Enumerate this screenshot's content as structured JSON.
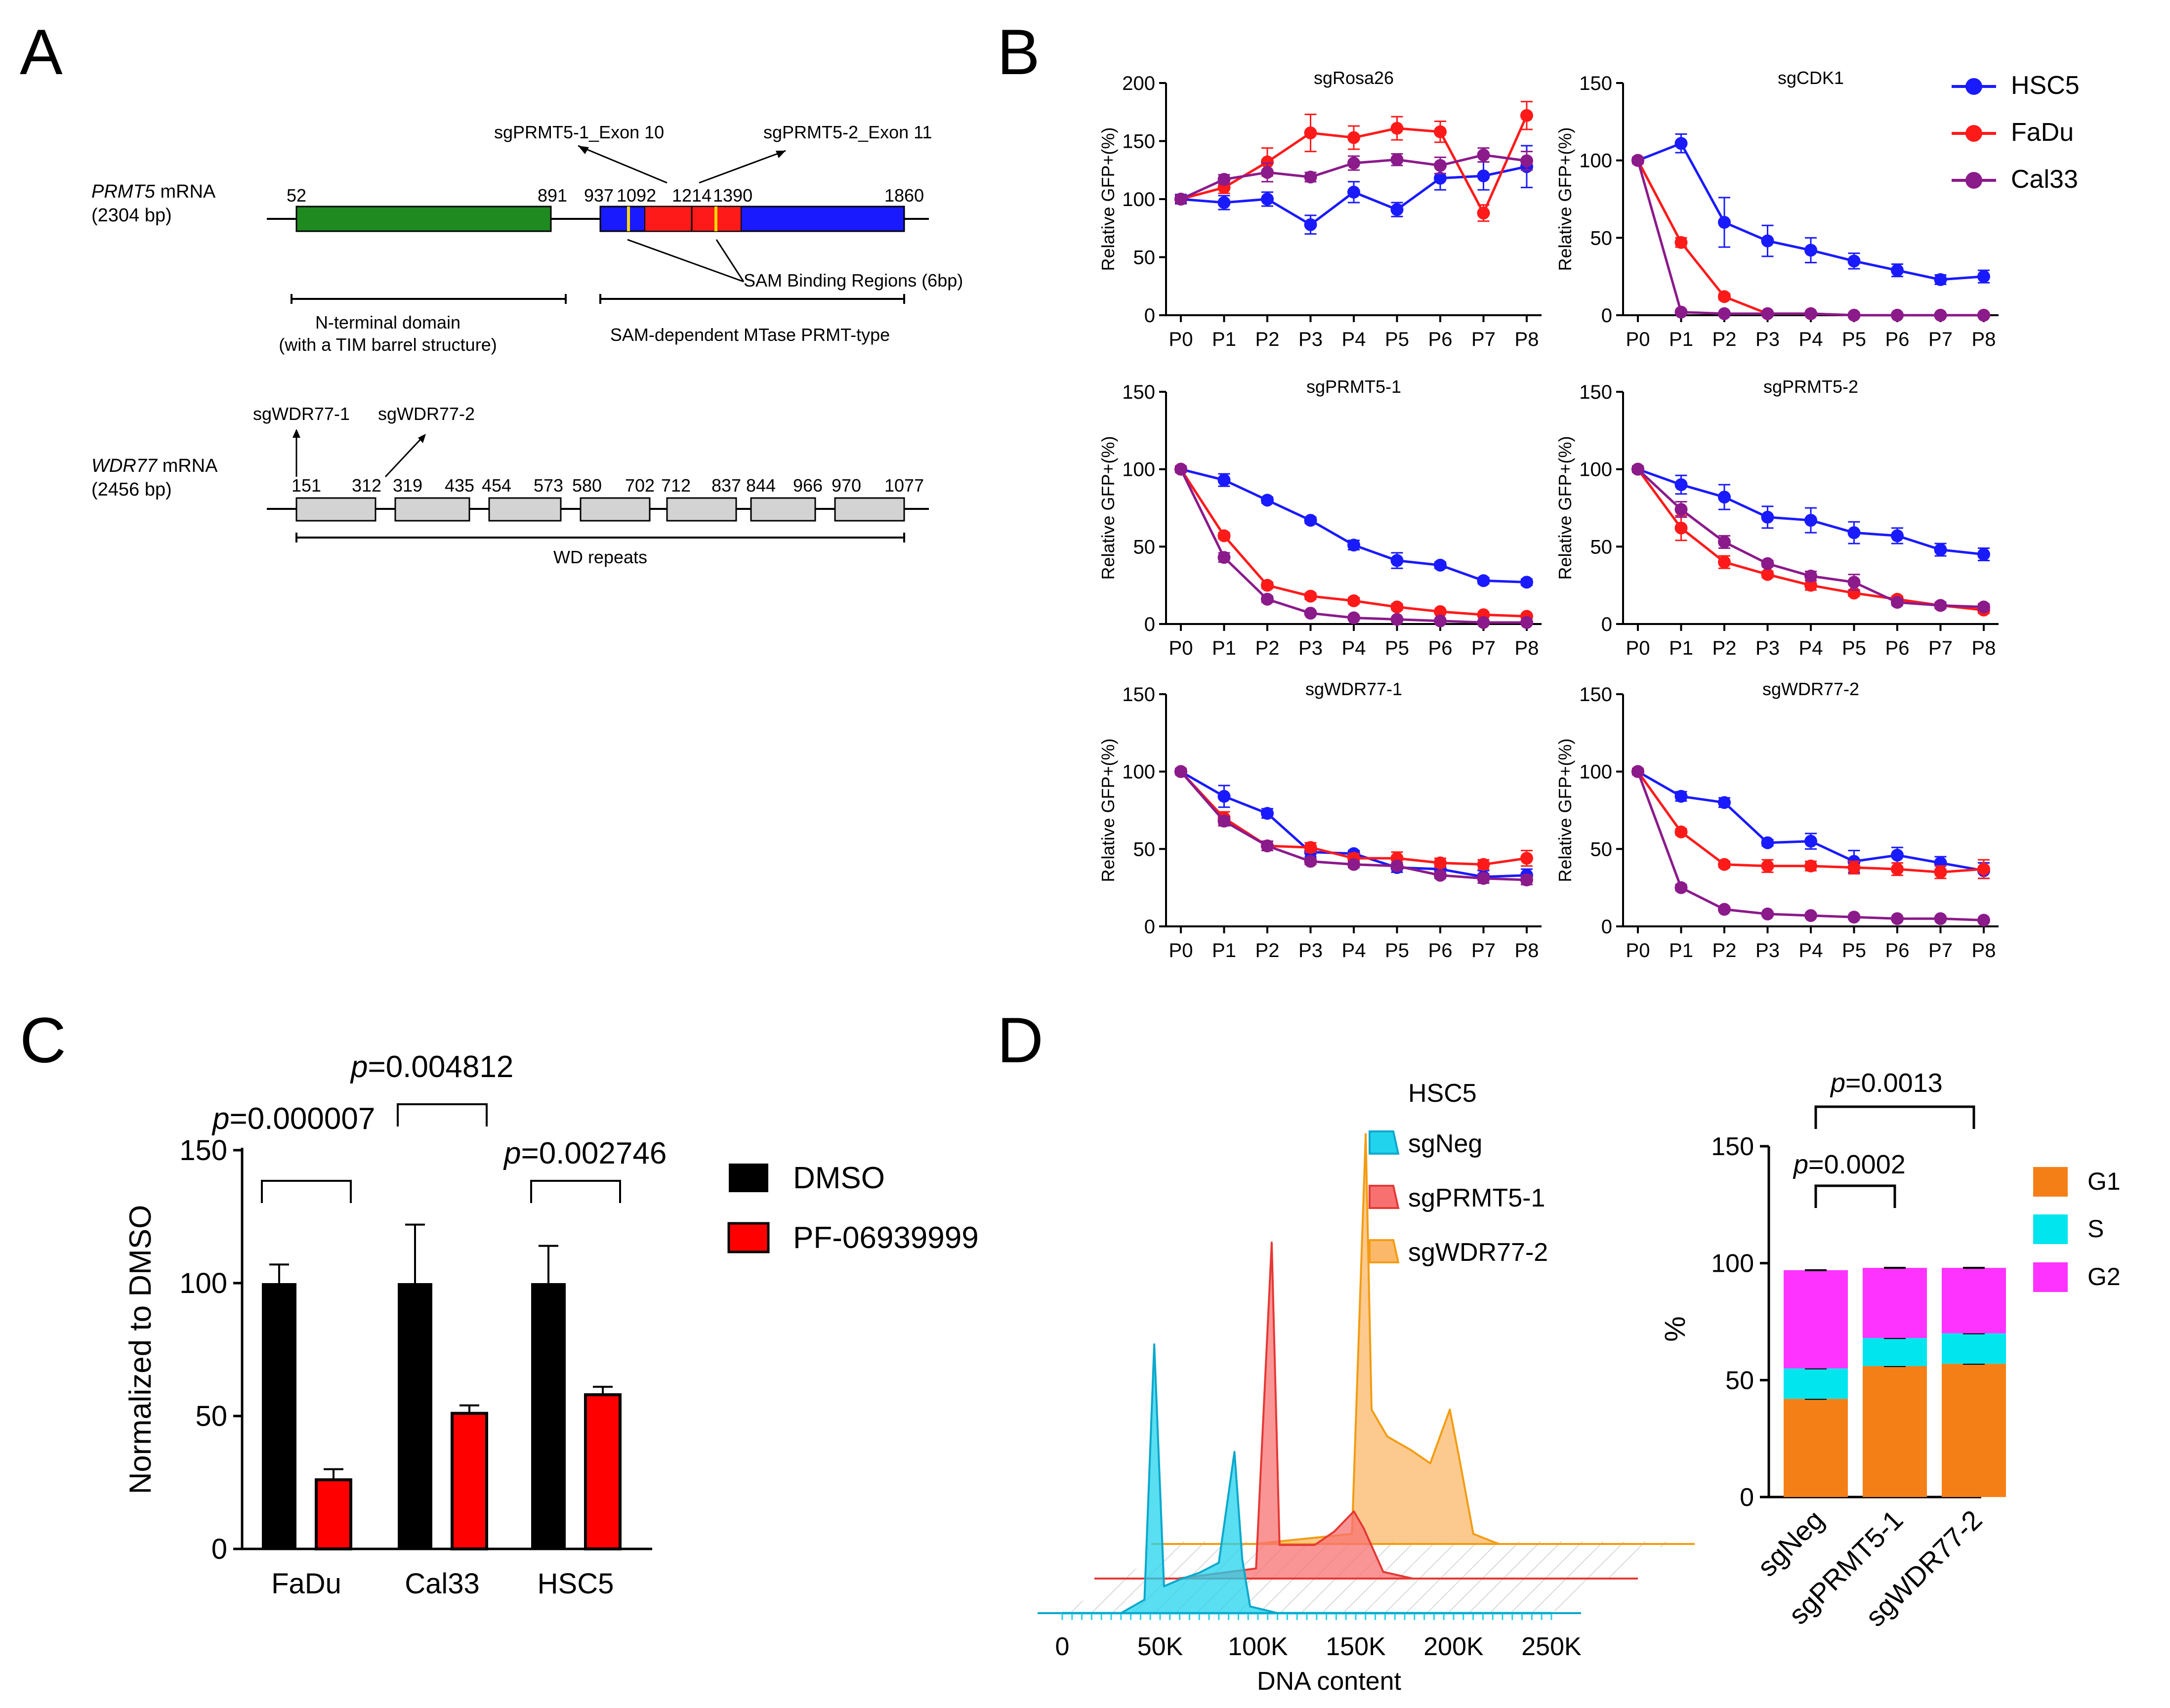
{
  "panel_labels": {
    "a": "A",
    "b": "B",
    "c": "C",
    "d": "D"
  },
  "colors": {
    "HSC5": "#1a1aff",
    "FaDu": "#ff1a1a",
    "Cal33": "#8b1a8b",
    "ntd": "#1f8a1f",
    "mtase": "#1a1aff",
    "sam": "#ff1a1a",
    "samline": "#ffd700",
    "wd": "#d3d3d3",
    "sgNeg": "#22d3ee",
    "sgPRMT5_1": "#f87171",
    "sgWDR77_2": "#fbb86a",
    "G1": "#f57f17",
    "S": "#00e5ee",
    "G2": "#ff33ff",
    "DMSO": "#000000",
    "PF": "#ff0000"
  },
  "panelA": {
    "prmt5": {
      "gene": "PRMT5",
      "suffix": " mRNA",
      "length": "(2304 bp)",
      "positions": [
        "52",
        "891",
        "937",
        "1092",
        "1214",
        "1390",
        "1860"
      ],
      "sg1": "sgPRMT5-1_Exon 10",
      "sg2": "sgPRMT5-2_Exon 11",
      "sam": "SAM Binding Regions (6bp)",
      "domain1": [
        "N-terminal domain",
        "(with a TIM barrel structure)"
      ],
      "domain2": "SAM-dependent MTase PRMT-type"
    },
    "wdr77": {
      "gene": "WDR77",
      "suffix": " mRNA",
      "length": "(2456 bp)",
      "sg1": "sgWDR77-1",
      "sg2": "sgWDR77-2",
      "positions": [
        "151",
        "312",
        "319",
        "435",
        "454",
        "573",
        "580",
        "702",
        "712",
        "837",
        "844",
        "966",
        "970",
        "1077"
      ],
      "domain": "WD repeats"
    }
  },
  "chart_data": [
    {
      "id": "B",
      "type": "line",
      "legend": [
        "HSC5",
        "FaDu",
        "Cal33"
      ],
      "x": [
        "P0",
        "P1",
        "P2",
        "P3",
        "P4",
        "P5",
        "P6",
        "P7",
        "P8"
      ],
      "ylabel": "Relative GFP+(%)",
      "subplots": [
        {
          "title": "sgRosa26",
          "ylim": [
            0,
            200
          ],
          "yticks": [
            0,
            50,
            100,
            150,
            200
          ],
          "series": [
            {
              "name": "HSC5",
              "values": [
                100,
                97,
                100,
                78,
                106,
                91,
                118,
                120,
                128
              ],
              "err": [
                4,
                6,
                6,
                8,
                9,
                6,
                10,
                12,
                18
              ]
            },
            {
              "name": "FaDu",
              "values": [
                100,
                110,
                132,
                157,
                153,
                161,
                158,
                88,
                172
              ],
              "err": [
                3,
                5,
                12,
                16,
                10,
                10,
                9,
                7,
                12
              ]
            },
            {
              "name": "Cal33",
              "values": [
                100,
                117,
                123,
                119,
                131,
                134,
                129,
                138,
                133
              ],
              "err": [
                3,
                4,
                8,
                4,
                6,
                5,
                7,
                6,
                8
              ]
            }
          ]
        },
        {
          "title": "sgCDK1",
          "ylim": [
            0,
            150
          ],
          "yticks": [
            0,
            50,
            100,
            150
          ],
          "series": [
            {
              "name": "HSC5",
              "values": [
                100,
                111,
                60,
                48,
                42,
                35,
                29,
                23,
                25
              ],
              "err": [
                2,
                6,
                16,
                10,
                8,
                5,
                4,
                3,
                4
              ]
            },
            {
              "name": "FaDu",
              "values": [
                100,
                47,
                12,
                1,
                1,
                0,
                0,
                0,
                0
              ],
              "err": [
                2,
                3,
                2,
                1,
                1,
                0,
                0,
                0,
                0
              ]
            },
            {
              "name": "Cal33",
              "values": [
                100,
                2,
                1,
                1,
                1,
                0,
                0,
                0,
                0
              ],
              "err": [
                2,
                1,
                0,
                0,
                0,
                0,
                0,
                0,
                0
              ]
            }
          ]
        },
        {
          "title": "sgPRMT5-1",
          "ylim": [
            0,
            150
          ],
          "yticks": [
            0,
            50,
            100,
            150
          ],
          "series": [
            {
              "name": "HSC5",
              "values": [
                100,
                93,
                80,
                67,
                51,
                41,
                38,
                28,
                27
              ],
              "err": [
                2,
                4,
                2,
                2,
                3,
                5,
                2,
                2,
                2
              ]
            },
            {
              "name": "FaDu",
              "values": [
                100,
                57,
                25,
                18,
                15,
                11,
                8,
                6,
                5
              ],
              "err": [
                2,
                2,
                2,
                2,
                2,
                2,
                1,
                1,
                1
              ]
            },
            {
              "name": "Cal33",
              "values": [
                100,
                43,
                16,
                7,
                4,
                3,
                2,
                1,
                1
              ],
              "err": [
                2,
                3,
                2,
                1,
                1,
                1,
                0,
                0,
                0
              ]
            }
          ]
        },
        {
          "title": "sgPRMT5-2",
          "ylim": [
            0,
            150
          ],
          "yticks": [
            0,
            50,
            100,
            150
          ],
          "series": [
            {
              "name": "HSC5",
              "values": [
                100,
                90,
                82,
                69,
                67,
                59,
                57,
                48,
                45
              ],
              "err": [
                2,
                6,
                8,
                7,
                8,
                7,
                5,
                4,
                4
              ]
            },
            {
              "name": "FaDu",
              "values": [
                100,
                62,
                40,
                32,
                25,
                20,
                16,
                12,
                9
              ],
              "err": [
                2,
                8,
                4,
                2,
                3,
                2,
                2,
                2,
                2
              ]
            },
            {
              "name": "Cal33",
              "values": [
                100,
                74,
                53,
                39,
                31,
                27,
                14,
                12,
                11
              ],
              "err": [
                2,
                5,
                4,
                2,
                3,
                5,
                2,
                2,
                2
              ]
            }
          ]
        },
        {
          "title": "sgWDR77-1",
          "ylim": [
            0,
            150
          ],
          "yticks": [
            0,
            50,
            100,
            150
          ],
          "series": [
            {
              "name": "HSC5",
              "values": [
                100,
                84,
                73,
                48,
                47,
                38,
                37,
                32,
                33
              ],
              "err": [
                2,
                7,
                3,
                3,
                2,
                3,
                2,
                4,
                4
              ]
            },
            {
              "name": "FaDu",
              "values": [
                100,
                70,
                52,
                51,
                44,
                44,
                41,
                40,
                44
              ],
              "err": [
                2,
                4,
                3,
                3,
                3,
                4,
                3,
                3,
                5
              ]
            },
            {
              "name": "Cal33",
              "values": [
                100,
                68,
                52,
                42,
                40,
                39,
                33,
                31,
                30
              ],
              "err": [
                2,
                3,
                3,
                2,
                2,
                2,
                2,
                3,
                3
              ]
            }
          ]
        },
        {
          "title": "sgWDR77-2",
          "ylim": [
            0,
            150
          ],
          "yticks": [
            0,
            50,
            100,
            150
          ],
          "series": [
            {
              "name": "HSC5",
              "values": [
                100,
                84,
                80,
                54,
                55,
                42,
                46,
                41,
                36
              ],
              "err": [
                2,
                3,
                3,
                2,
                5,
                7,
                5,
                4,
                5
              ]
            },
            {
              "name": "FaDu",
              "values": [
                100,
                61,
                40,
                39,
                39,
                38,
                37,
                35,
                37
              ],
              "err": [
                2,
                2,
                2,
                4,
                3,
                4,
                4,
                4,
                6
              ]
            },
            {
              "name": "Cal33",
              "values": [
                100,
                25,
                11,
                8,
                7,
                6,
                5,
                5,
                4
              ],
              "err": [
                2,
                2,
                1,
                1,
                1,
                0,
                0,
                0,
                0
              ]
            }
          ]
        }
      ]
    },
    {
      "id": "C",
      "type": "bar",
      "categories": [
        "FaDu",
        "Cal33",
        "HSC5"
      ],
      "ylabel": "Normalized to DMSO",
      "ylim": [
        0,
        150
      ],
      "yticks": [
        0,
        50,
        100,
        150
      ],
      "series": [
        {
          "name": "DMSO",
          "values": [
            100,
            100,
            100
          ],
          "err": [
            7,
            22,
            14
          ]
        },
        {
          "name": "PF-06939999",
          "values": [
            26,
            51,
            58
          ],
          "err": [
            4,
            3,
            3
          ]
        }
      ],
      "pvalues": [
        "0.000007",
        "0.004812",
        "0.002746"
      ],
      "p_prefix": "p"
    },
    {
      "id": "D1",
      "type": "area",
      "title": "HSC5",
      "legend": [
        "sgNeg",
        "sgPRMT5-1",
        "sgWDR77-2"
      ],
      "xlabel": "DNA content",
      "xticks": [
        "0",
        "50K",
        "100K",
        "150K",
        "200K",
        "250K"
      ],
      "xticks_values": [
        0,
        50000,
        100000,
        150000,
        200000,
        250000
      ],
      "series": [
        {
          "name": "sgNeg",
          "x": [
            30000,
            42000,
            47000,
            52000,
            60000,
            70000,
            80000,
            88000,
            92000,
            96000,
            110000
          ],
          "y": [
            0,
            4,
            80,
            8,
            10,
            12,
            15,
            48,
            16,
            2,
            0
          ]
        },
        {
          "name": "sgPRMT5-1",
          "x": [
            30000,
            70000,
            78000,
            82000,
            88000,
            100000,
            110000,
            120000,
            125000,
            135000,
            150000
          ],
          "y": [
            0,
            3,
            100,
            10,
            10,
            10,
            14,
            20,
            15,
            2,
            0
          ]
        },
        {
          "name": "sgWDR77-2",
          "x": [
            40000,
            90000,
            97000,
            100000,
            108000,
            120000,
            130000,
            140000,
            145000,
            152000,
            165000
          ],
          "y": [
            0,
            3,
            122,
            40,
            32,
            28,
            24,
            40,
            25,
            3,
            0
          ]
        }
      ]
    },
    {
      "id": "D2",
      "type": "bar",
      "categories": [
        "sgNeg",
        "sgPRMT5-1",
        "sgWDR77-2"
      ],
      "ylabel": "%",
      "ylim": [
        0,
        150
      ],
      "yticks": [
        0,
        50,
        100,
        150
      ],
      "stacked": true,
      "series": [
        {
          "name": "G1",
          "values": [
            42,
            56,
            57
          ]
        },
        {
          "name": "S",
          "values": [
            13,
            12,
            13
          ]
        },
        {
          "name": "G2",
          "values": [
            42,
            30,
            28
          ]
        }
      ],
      "totals_err": [
        1,
        1,
        1
      ],
      "pvalues": [
        "0.0002",
        "0.0013"
      ],
      "p_prefix": "p"
    }
  ]
}
